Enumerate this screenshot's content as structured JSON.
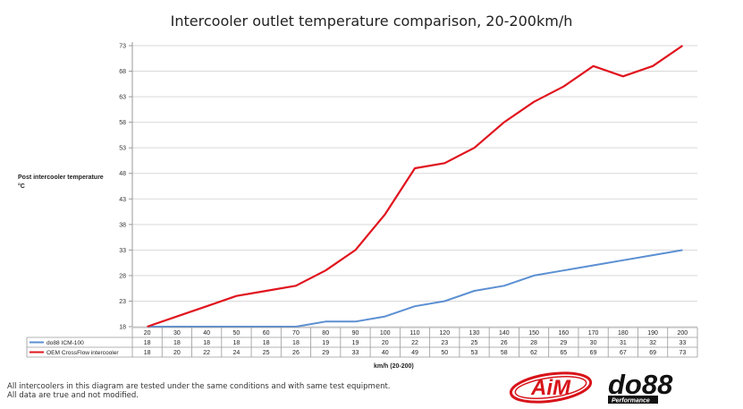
{
  "chart_data": {
    "type": "line",
    "title": "Intercooler outlet temperature comparison, 20-200km/h",
    "ylabel": "Post intercooler temperature °C",
    "xlabel": "km/h (20-200)",
    "yticks": [
      18,
      23,
      28,
      33,
      38,
      43,
      48,
      53,
      58,
      63,
      68,
      73
    ],
    "ylim": [
      18,
      73
    ],
    "x": [
      20,
      30,
      40,
      50,
      60,
      70,
      80,
      90,
      100,
      110,
      120,
      130,
      140,
      150,
      160,
      170,
      180,
      190,
      200
    ],
    "series": [
      {
        "name": "do88 ICM-100",
        "color": "#5b8fd2",
        "values": [
          18,
          18,
          18,
          18,
          18,
          18,
          19,
          19,
          20,
          22,
          23,
          25,
          26,
          28,
          29,
          30,
          31,
          32,
          33
        ]
      },
      {
        "name": "OEM CrossFlow intercooler",
        "color": "#e0141e",
        "values": [
          18,
          20,
          22,
          24,
          25,
          26,
          29,
          33,
          40,
          49,
          50,
          53,
          58,
          62,
          65,
          69,
          67,
          69,
          73
        ]
      }
    ],
    "grid": true,
    "legend": "data-table"
  },
  "footnote": {
    "line1": "All intercoolers in this diagram are tested under the same conditions and with same test equipment.",
    "line2": "All data are true and not modified."
  },
  "logos": {
    "aim": "AiM",
    "do88": "do88",
    "do88_sub": "Performance"
  }
}
